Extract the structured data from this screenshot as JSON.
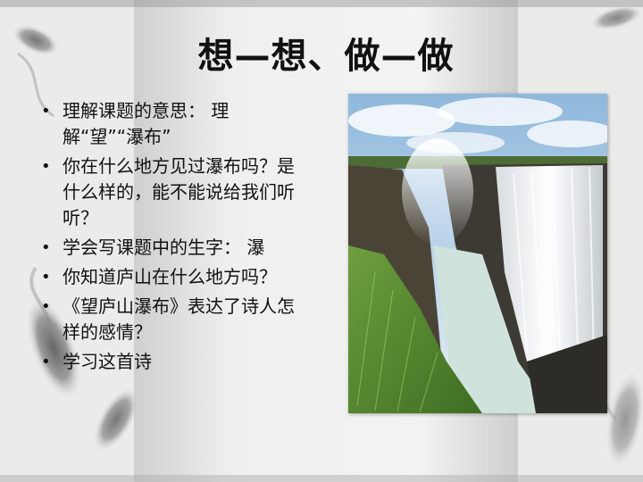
{
  "slide": {
    "title": "想—想、做—做",
    "bullets": [
      "理解课题的意思： 理解“望”“瀑布”",
      "你在什么地方见过瀑布吗？是什么样的，能不能说给我们听听？",
      "学会写课题中的生字： 瀑",
      "你知道庐山在什么地方吗？",
      "《望庐山瀑布》表达了诗人怎样的感情？",
      "学习这首诗"
    ],
    "bullet_glyph": "•"
  }
}
